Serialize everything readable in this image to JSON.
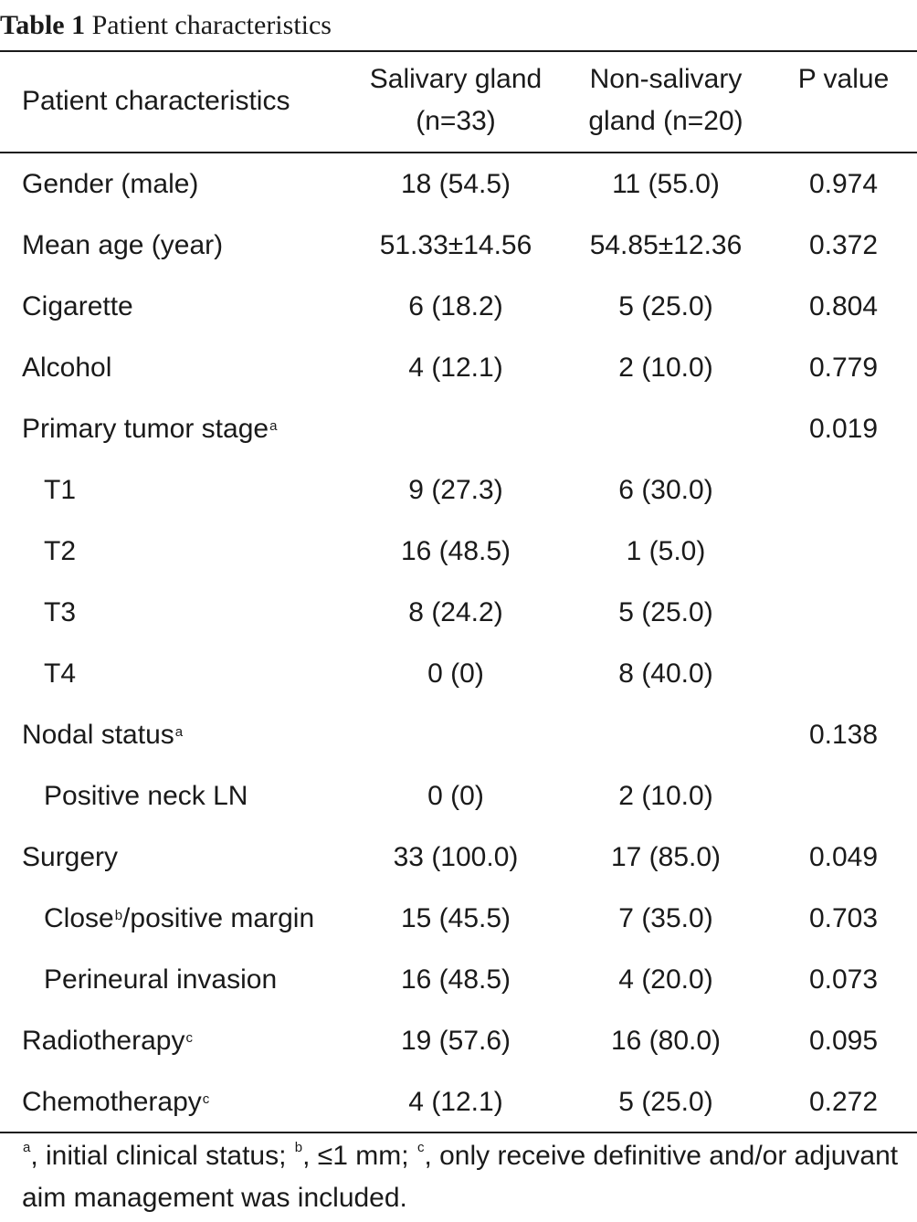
{
  "caption": {
    "label": "Table 1",
    "title": "Patient characteristics"
  },
  "header": {
    "col0": "Patient characteristics",
    "col1_line1": "Salivary gland",
    "col1_line2": "(n=33)",
    "col2_line1": "Non-salivary",
    "col2_line2": "gland (n=20)",
    "col3": "P value"
  },
  "rows": [
    {
      "label": "Gender (male)",
      "sup": "",
      "salivary": "18 (54.5)",
      "non_salivary": "11 (55.0)",
      "p": "0.974"
    },
    {
      "label": "Mean age (year)",
      "sup": "",
      "salivary": "51.33±14.56",
      "non_salivary": "54.85±12.36",
      "p": "0.372"
    },
    {
      "label": "Cigarette",
      "sup": "",
      "salivary": "6 (18.2)",
      "non_salivary": "5 (25.0)",
      "p": "0.804"
    },
    {
      "label": "Alcohol",
      "sup": "",
      "salivary": "4 (12.1)",
      "non_salivary": "2 (10.0)",
      "p": "0.779"
    },
    {
      "label": "Primary tumor stage",
      "sup": "a",
      "salivary": "",
      "non_salivary": "",
      "p": "0.019"
    },
    {
      "label": "T1",
      "sup": "",
      "salivary": "9 (27.3)",
      "non_salivary": "6 (30.0)",
      "p": ""
    },
    {
      "label": "T2",
      "sup": "",
      "salivary": "16 (48.5)",
      "non_salivary": "1 (5.0)",
      "p": ""
    },
    {
      "label": "T3",
      "sup": "",
      "salivary": "8 (24.2)",
      "non_salivary": "5 (25.0)",
      "p": ""
    },
    {
      "label": "T4",
      "sup": "",
      "salivary": "0 (0)",
      "non_salivary": "8 (40.0)",
      "p": ""
    },
    {
      "label": "Nodal status",
      "sup": "a",
      "salivary": "",
      "non_salivary": "",
      "p": "0.138"
    },
    {
      "label": "Positive neck LN",
      "sup": "",
      "salivary": "0 (0)",
      "non_salivary": "2 (10.0)",
      "p": ""
    },
    {
      "label": "Surgery",
      "sup": "",
      "salivary": "33 (100.0)",
      "non_salivary": "17 (85.0)",
      "p": "0.049"
    },
    {
      "label": "Close",
      "sup": "b",
      "label_suffix": "/positive margin",
      "salivary": "15 (45.5)",
      "non_salivary": "7 (35.0)",
      "p": "0.703"
    },
    {
      "label": "Perineural invasion",
      "sup": "",
      "salivary": "16 (48.5)",
      "non_salivary": "4 (20.0)",
      "p": "0.073"
    },
    {
      "label": "Radiotherapy",
      "sup": "c",
      "salivary": "19 (57.6)",
      "non_salivary": "16 (80.0)",
      "p": "0.095"
    },
    {
      "label": "Chemotherapy",
      "sup": "c",
      "salivary": "4 (12.1)",
      "non_salivary": "5 (25.0)",
      "p": "0.272"
    }
  ],
  "footnote": {
    "mark_a": "a",
    "text_a": ", initial clinical status; ",
    "mark_b": "b",
    "text_b": ", ≤1 mm; ",
    "mark_c": "c",
    "text_c": ", only receive definitive and/or adjuvant aim management was included."
  }
}
